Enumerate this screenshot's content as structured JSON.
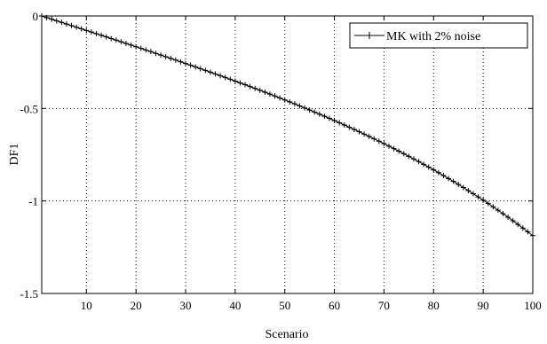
{
  "chart_data": {
    "type": "line",
    "title": "",
    "xlabel": "Scenario",
    "ylabel": "DF1",
    "xlim": [
      1,
      100
    ],
    "ylim": [
      -1.5,
      0
    ],
    "xticks": [
      10,
      20,
      30,
      40,
      50,
      60,
      70,
      80,
      90,
      100
    ],
    "yticks": [
      0,
      -0.5,
      -1,
      -1.5
    ],
    "xtick_labels": [
      "10",
      "20",
      "30",
      "40",
      "50",
      "60",
      "70",
      "80",
      "90",
      "100"
    ],
    "ytick_labels": [
      "0",
      "-0.5",
      "-1",
      "-1.5"
    ],
    "grid": true,
    "legend_position": "top-right",
    "series": [
      {
        "name": "MK with 2%  noise",
        "marker": "plus",
        "color": "#000000",
        "x": [
          1,
          2,
          3,
          4,
          5,
          6,
          7,
          8,
          9,
          10,
          11,
          12,
          13,
          14,
          15,
          16,
          17,
          18,
          19,
          20,
          21,
          22,
          23,
          24,
          25,
          26,
          27,
          28,
          29,
          30,
          31,
          32,
          33,
          34,
          35,
          36,
          37,
          38,
          39,
          40,
          41,
          42,
          43,
          44,
          45,
          46,
          47,
          48,
          49,
          50,
          51,
          52,
          53,
          54,
          55,
          56,
          57,
          58,
          59,
          60,
          61,
          62,
          63,
          64,
          65,
          66,
          67,
          68,
          69,
          70,
          71,
          72,
          73,
          74,
          75,
          76,
          77,
          78,
          79,
          80,
          81,
          82,
          83,
          84,
          85,
          86,
          87,
          88,
          89,
          90,
          91,
          92,
          93,
          94,
          95,
          96,
          97,
          98,
          99,
          100
        ],
        "y": [
          0,
          -0.0087,
          -0.0174,
          -0.0261,
          -0.0348,
          -0.0435,
          -0.0522,
          -0.0609,
          -0.0696,
          -0.0783,
          -0.087,
          -0.0958,
          -0.1045,
          -0.1133,
          -0.1221,
          -0.1309,
          -0.1397,
          -0.1486,
          -0.1574,
          -0.1663,
          -0.1752,
          -0.1842,
          -0.1932,
          -0.2022,
          -0.2112,
          -0.2203,
          -0.2294,
          -0.2385,
          -0.2477,
          -0.2569,
          -0.2662,
          -0.2755,
          -0.2849,
          -0.2943,
          -0.3038,
          -0.3133,
          -0.3229,
          -0.3325,
          -0.3422,
          -0.352,
          -0.3618,
          -0.3717,
          -0.3817,
          -0.3918,
          -0.4019,
          -0.4121,
          -0.4224,
          -0.4328,
          -0.4433,
          -0.4539,
          -0.4645,
          -0.4753,
          -0.4862,
          -0.4972,
          -0.5083,
          -0.5195,
          -0.5308,
          -0.5422,
          -0.5538,
          -0.5655,
          -0.5773,
          -0.5893,
          -0.6014,
          -0.6136,
          -0.626,
          -0.6385,
          -0.6512,
          -0.6641,
          -0.6771,
          -0.6902,
          -0.7036,
          -0.7171,
          -0.7308,
          -0.7447,
          -0.7587,
          -0.773,
          -0.7874,
          -0.8021,
          -0.817,
          -0.832,
          -0.8473,
          -0.8628,
          -0.8786,
          -0.8946,
          -0.9108,
          -0.9273,
          -0.944,
          -0.961,
          -0.9782,
          -0.9957,
          -1.0135,
          -1.0316,
          -1.05,
          -1.0687,
          -1.0877,
          -1.107,
          -1.1266,
          -1.1466,
          -1.1669,
          -1.1875
        ]
      }
    ]
  }
}
